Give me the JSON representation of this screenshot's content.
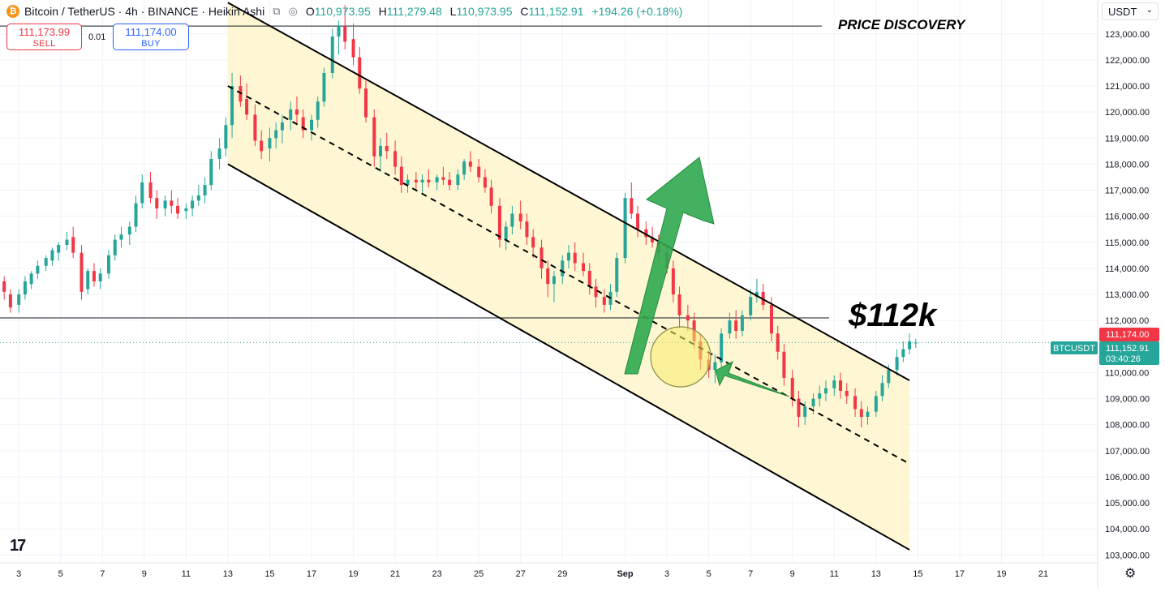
{
  "header": {
    "title": "Bitcoin / TetherUS · 4h · BINANCE · Heikin Ashi",
    "coin_symbol": "₿",
    "open_label": "O",
    "open": "110,973.95",
    "high_label": "H",
    "high": "111,279.48",
    "low_label": "L",
    "low": "110,973.95",
    "close_label": "C",
    "close": "111,152.91",
    "change": "+194.26 (+0.18%)"
  },
  "trade": {
    "sell_price": "111,173.99",
    "sell_label": "SELL",
    "spread": "0.01",
    "buy_price": "111,174.00",
    "buy_label": "BUY"
  },
  "currency": {
    "value": "USDT"
  },
  "logo": {
    "text": "17"
  },
  "settings": {
    "icon": "gear-icon"
  },
  "chart_data": {
    "type": "candlestick",
    "symbol_tag": "BTCUSDT",
    "price_labels": {
      "ask": "111,174.00",
      "last": "111,152.91",
      "countdown": "03:40:26"
    },
    "y_ticks": [
      "123,000.00",
      "122,000.00",
      "121,000.00",
      "120,000.00",
      "119,000.00",
      "118,000.00",
      "117,000.00",
      "116,000.00",
      "115,000.00",
      "114,000.00",
      "113,000.00",
      "112,000.00",
      "110,000.00",
      "109,000.00",
      "108,000.00",
      "107,000.00",
      "106,000.00",
      "105,000.00",
      "104,000.00",
      "103,000.00"
    ],
    "y_tick_values": [
      123000,
      122000,
      121000,
      120000,
      119000,
      118000,
      117000,
      116000,
      115000,
      114000,
      113000,
      112000,
      110000,
      109000,
      108000,
      107000,
      106000,
      105000,
      104000,
      103000
    ],
    "x_ticks": [
      "3",
      "5",
      "7",
      "9",
      "11",
      "13",
      "15",
      "17",
      "19",
      "21",
      "23",
      "25",
      "27",
      "29",
      "Sep",
      "3",
      "5",
      "7",
      "9",
      "11",
      "13",
      "15",
      "17",
      "19",
      "21"
    ],
    "x_tick_days": [
      3,
      5,
      7,
      9,
      11,
      13,
      15,
      17,
      19,
      21,
      23,
      25,
      27,
      29,
      32,
      34,
      36,
      38,
      40,
      42,
      44,
      46,
      48,
      50,
      52
    ],
    "ylim": [
      102700,
      124300
    ],
    "xlim": [
      2.1,
      54.6
    ],
    "candles_ohlc": [
      [
        1.9,
        113800,
        114000,
        113100,
        113600
      ],
      [
        2.3,
        113500,
        113700,
        112800,
        113100
      ],
      [
        2.6,
        113000,
        113200,
        112300,
        112500
      ],
      [
        3.0,
        112600,
        113200,
        112300,
        113000
      ],
      [
        3.3,
        113000,
        113700,
        112800,
        113500
      ],
      [
        3.6,
        113400,
        113900,
        113200,
        113800
      ],
      [
        3.9,
        113800,
        114300,
        113600,
        114100
      ],
      [
        4.3,
        114100,
        114500,
        113900,
        114400
      ],
      [
        4.6,
        114300,
        114800,
        114100,
        114700
      ],
      [
        4.9,
        114600,
        115000,
        114300,
        114900
      ],
      [
        5.3,
        114900,
        115400,
        114700,
        115100
      ],
      [
        5.6,
        115200,
        115600,
        114400,
        114600
      ],
      [
        6.0,
        114600,
        114900,
        112800,
        113100
      ],
      [
        6.3,
        113200,
        114000,
        113000,
        113900
      ],
      [
        6.6,
        113900,
        114200,
        113300,
        113500
      ],
      [
        6.9,
        113500,
        114000,
        113200,
        113800
      ],
      [
        7.3,
        113800,
        114700,
        113600,
        114500
      ],
      [
        7.6,
        114500,
        115300,
        114300,
        115100
      ],
      [
        7.9,
        115100,
        115600,
        114800,
        115300
      ],
      [
        8.3,
        115300,
        115800,
        114900,
        115600
      ],
      [
        8.6,
        115600,
        116800,
        115400,
        116500
      ],
      [
        8.9,
        116500,
        117600,
        116300,
        117300
      ],
      [
        9.3,
        117300,
        117700,
        116500,
        116700
      ],
      [
        9.6,
        116700,
        117000,
        115900,
        116300
      ],
      [
        10.0,
        116300,
        116800,
        116000,
        116600
      ],
      [
        10.3,
        116600,
        117000,
        116100,
        116400
      ],
      [
        10.6,
        116400,
        116700,
        115900,
        116100
      ],
      [
        11.0,
        116200,
        116500,
        115900,
        116300
      ],
      [
        11.3,
        116300,
        116800,
        116000,
        116600
      ],
      [
        11.6,
        116600,
        117200,
        116400,
        116800
      ],
      [
        11.9,
        116800,
        117500,
        116500,
        117200
      ],
      [
        12.2,
        117200,
        118500,
        117000,
        118200
      ],
      [
        12.6,
        118200,
        119000,
        117800,
        118600
      ],
      [
        12.9,
        118600,
        119800,
        118300,
        119500
      ],
      [
        13.2,
        119500,
        121500,
        119000,
        121000
      ],
      [
        13.6,
        121000,
        121400,
        120200,
        120400
      ],
      [
        13.9,
        120500,
        121100,
        119700,
        119900
      ],
      [
        14.3,
        119900,
        120300,
        118700,
        118900
      ],
      [
        14.6,
        118900,
        119300,
        118200,
        118500
      ],
      [
        15.0,
        118600,
        119400,
        118100,
        119000
      ],
      [
        15.3,
        119000,
        119600,
        118600,
        119300
      ],
      [
        15.6,
        119300,
        119900,
        118800,
        119600
      ],
      [
        16.0,
        119700,
        120400,
        119300,
        120100
      ],
      [
        16.3,
        120100,
        120600,
        119500,
        119900
      ],
      [
        16.6,
        119800,
        120100,
        119000,
        119300
      ],
      [
        17.0,
        119300,
        119900,
        118900,
        119700
      ],
      [
        17.3,
        119700,
        120600,
        119400,
        120400
      ],
      [
        17.6,
        120400,
        121700,
        120200,
        121500
      ],
      [
        18.0,
        121500,
        123200,
        121300,
        122900
      ],
      [
        18.3,
        122900,
        123500,
        122200,
        123300
      ],
      [
        18.6,
        123300,
        124100,
        122400,
        122700
      ],
      [
        19.0,
        122800,
        123400,
        121800,
        122100
      ],
      [
        19.3,
        122100,
        122500,
        120700,
        120900
      ],
      [
        19.6,
        120900,
        121200,
        119600,
        119800
      ],
      [
        20.0,
        119800,
        120100,
        117900,
        118300
      ],
      [
        20.3,
        118300,
        119000,
        117700,
        118700
      ],
      [
        20.6,
        118700,
        119200,
        118200,
        118500
      ],
      [
        21.0,
        118500,
        118900,
        117600,
        117900
      ],
      [
        21.3,
        117900,
        118300,
        116900,
        117200
      ],
      [
        21.6,
        117200,
        117600,
        116900,
        117400
      ],
      [
        22.0,
        117400,
        117700,
        117000,
        117300
      ],
      [
        22.3,
        117300,
        117600,
        116900,
        117400
      ],
      [
        22.6,
        117400,
        117800,
        117100,
        117300
      ],
      [
        23.0,
        117300,
        117600,
        117000,
        117500
      ],
      [
        23.3,
        117500,
        117900,
        117200,
        117400
      ],
      [
        23.6,
        117400,
        117700,
        117000,
        117200
      ],
      [
        24.0,
        117200,
        117800,
        117000,
        117600
      ],
      [
        24.3,
        117600,
        118200,
        117400,
        118100
      ],
      [
        24.6,
        118100,
        118500,
        117700,
        117900
      ],
      [
        25.0,
        117900,
        118200,
        117300,
        117500
      ],
      [
        25.3,
        117500,
        117800,
        116900,
        117100
      ],
      [
        25.6,
        117100,
        117400,
        116100,
        116400
      ],
      [
        26.0,
        116400,
        116700,
        114800,
        115100
      ],
      [
        26.3,
        115100,
        115800,
        114700,
        115600
      ],
      [
        26.6,
        115600,
        116400,
        115300,
        116100
      ],
      [
        27.0,
        116100,
        116600,
        115500,
        115800
      ],
      [
        27.3,
        115800,
        116100,
        114900,
        115200
      ],
      [
        27.6,
        115200,
        115500,
        114400,
        114800
      ],
      [
        28.0,
        114800,
        115100,
        113600,
        114000
      ],
      [
        28.3,
        114000,
        114300,
        112900,
        113400
      ],
      [
        28.6,
        113400,
        113900,
        112700,
        113700
      ],
      [
        29.0,
        113700,
        114500,
        113400,
        114300
      ],
      [
        29.3,
        114300,
        114900,
        114000,
        114600
      ],
      [
        29.6,
        114600,
        115000,
        113900,
        114200
      ],
      [
        30.0,
        114200,
        114600,
        113700,
        113900
      ],
      [
        30.3,
        113900,
        114200,
        113000,
        113300
      ],
      [
        30.6,
        113300,
        113600,
        112500,
        112900
      ],
      [
        31.0,
        112900,
        113200,
        112300,
        112600
      ],
      [
        31.3,
        112600,
        113400,
        112400,
        113100
      ],
      [
        31.6,
        113100,
        114600,
        112900,
        114400
      ],
      [
        32.0,
        114400,
        116900,
        114200,
        116700
      ],
      [
        32.3,
        116700,
        117300,
        115900,
        116100
      ],
      [
        32.6,
        116100,
        116400,
        115200,
        115500
      ],
      [
        33.0,
        115500,
        115800,
        114900,
        115200
      ],
      [
        33.3,
        115200,
        115600,
        114800,
        115000
      ],
      [
        33.6,
        115000,
        115300,
        114300,
        114600
      ],
      [
        34.0,
        114600,
        114900,
        113800,
        114000
      ],
      [
        34.3,
        114000,
        114300,
        112700,
        113000
      ],
      [
        34.6,
        113000,
        113300,
        111700,
        112200
      ],
      [
        35.0,
        112200,
        112600,
        111600,
        112000
      ],
      [
        35.3,
        112000,
        112300,
        110900,
        111200
      ],
      [
        35.6,
        111200,
        111500,
        110100,
        110500
      ],
      [
        36.0,
        110500,
        110800,
        109800,
        110100
      ],
      [
        36.3,
        110100,
        110700,
        109600,
        110400
      ],
      [
        36.6,
        110400,
        111700,
        110200,
        111500
      ],
      [
        37.0,
        111500,
        112300,
        111300,
        112000
      ],
      [
        37.3,
        112000,
        112400,
        111300,
        111600
      ],
      [
        37.6,
        111600,
        112400,
        111400,
        112200
      ],
      [
        38.0,
        112200,
        113200,
        112000,
        112900
      ],
      [
        38.3,
        112900,
        113600,
        112700,
        113100
      ],
      [
        38.6,
        113100,
        113400,
        112400,
        112600
      ],
      [
        39.0,
        112600,
        112900,
        111200,
        111500
      ],
      [
        39.3,
        111500,
        111800,
        110500,
        110800
      ],
      [
        39.6,
        110800,
        111100,
        109500,
        109800
      ],
      [
        40.0,
        109800,
        110100,
        108700,
        109000
      ],
      [
        40.3,
        109000,
        109300,
        107900,
        108300
      ],
      [
        40.6,
        108300,
        108900,
        108000,
        108700
      ],
      [
        41.0,
        108700,
        109200,
        108400,
        109000
      ],
      [
        41.3,
        109000,
        109500,
        108700,
        109200
      ],
      [
        41.6,
        109200,
        109700,
        108900,
        109400
      ],
      [
        42.0,
        109400,
        109900,
        109100,
        109700
      ],
      [
        42.3,
        109700,
        110000,
        109000,
        109300
      ],
      [
        42.6,
        109300,
        109600,
        108800,
        109100
      ],
      [
        43.0,
        109100,
        109400,
        108300,
        108600
      ],
      [
        43.3,
        108600,
        108900,
        107900,
        108300
      ],
      [
        43.6,
        108300,
        108700,
        108000,
        108500
      ],
      [
        44.0,
        108500,
        109300,
        108300,
        109100
      ],
      [
        44.3,
        109100,
        109900,
        108900,
        109600
      ],
      [
        44.6,
        109600,
        110300,
        109400,
        110100
      ],
      [
        45.0,
        110100,
        110900,
        109900,
        110600
      ],
      [
        45.3,
        110600,
        111200,
        110400,
        110900
      ],
      [
        45.6,
        110900,
        111500,
        110700,
        111200
      ],
      [
        45.9,
        111150,
        111300,
        110950,
        111153
      ]
    ],
    "channel_upper": [
      [
        13,
        124200
      ],
      [
        45.6,
        109700
      ]
    ],
    "channel_mid": [
      [
        13,
        121000
      ],
      [
        45.6,
        106500
      ]
    ],
    "channel_lower": [
      [
        13,
        118000
      ],
      [
        45.6,
        103200
      ]
    ],
    "levels": [
      123300,
      112100
    ],
    "annotations": {
      "price_discovery": "PRICE DISCOVERY",
      "target_label": "$112k"
    }
  }
}
